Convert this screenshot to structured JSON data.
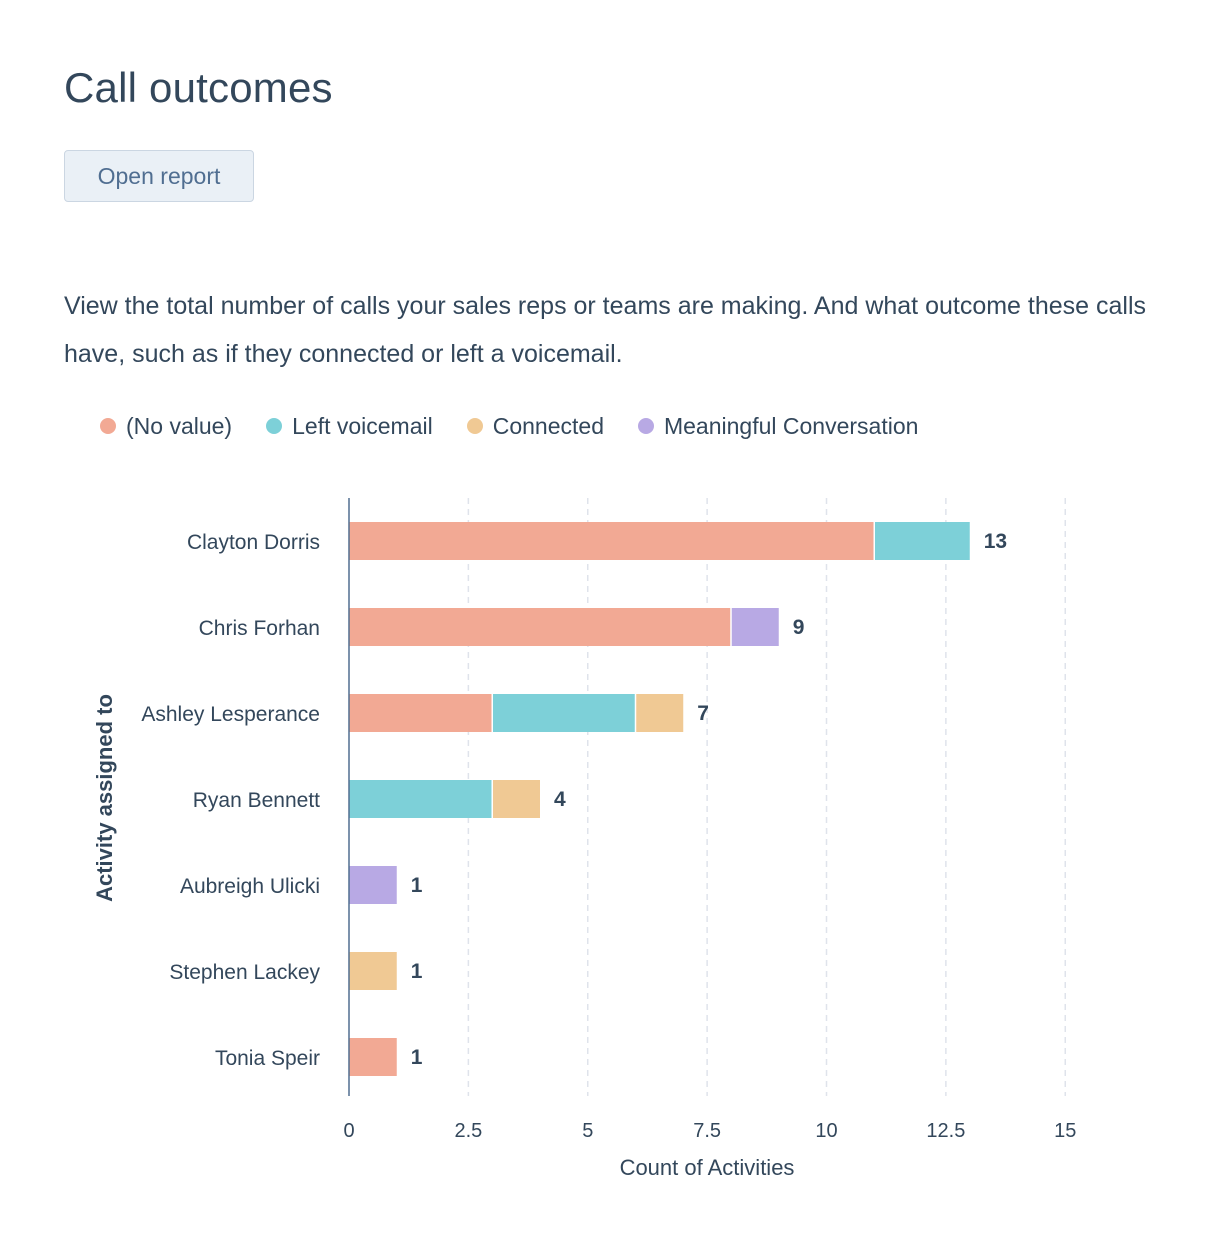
{
  "header": {
    "title": "Call outcomes",
    "open_report_label": "Open report"
  },
  "description": "View the total number of calls your sales reps or teams are making. And what outcome these calls have, such as if they connected or left a voicemail.",
  "chart_data": {
    "type": "bar",
    "orientation": "horizontal",
    "stacked": true,
    "categories": [
      "Clayton Dorris",
      "Chris Forhan",
      "Ashley Lesperance",
      "Ryan Bennett",
      "Aubreigh Ulicki",
      "Stephen Lackey",
      "Tonia Speir"
    ],
    "series": [
      {
        "name": "(No value)",
        "color": "#f2a994",
        "values": [
          11,
          8,
          3,
          0,
          0,
          0,
          1
        ]
      },
      {
        "name": "Left voicemail",
        "color": "#7dd0d8",
        "values": [
          2,
          0,
          3,
          3,
          0,
          0,
          0
        ]
      },
      {
        "name": "Connected",
        "color": "#f0c994",
        "values": [
          0,
          0,
          1,
          1,
          0,
          1,
          0
        ]
      },
      {
        "name": "Meaningful Conversation",
        "color": "#b8a9e4",
        "values": [
          0,
          1,
          0,
          0,
          1,
          0,
          0
        ]
      }
    ],
    "totals": [
      13,
      9,
      7,
      4,
      1,
      1,
      1
    ],
    "xlim": [
      0,
      15
    ],
    "xticks": [
      0,
      2.5,
      5,
      7.5,
      10,
      12.5,
      15
    ],
    "xtick_labels": [
      "0",
      "2.5",
      "5",
      "7.5",
      "10",
      "12.5",
      "15"
    ],
    "xlabel": "Count of Activities",
    "ylabel": "Activity assigned to",
    "grid": "vertical-dashed",
    "legend_position": "top-left"
  }
}
